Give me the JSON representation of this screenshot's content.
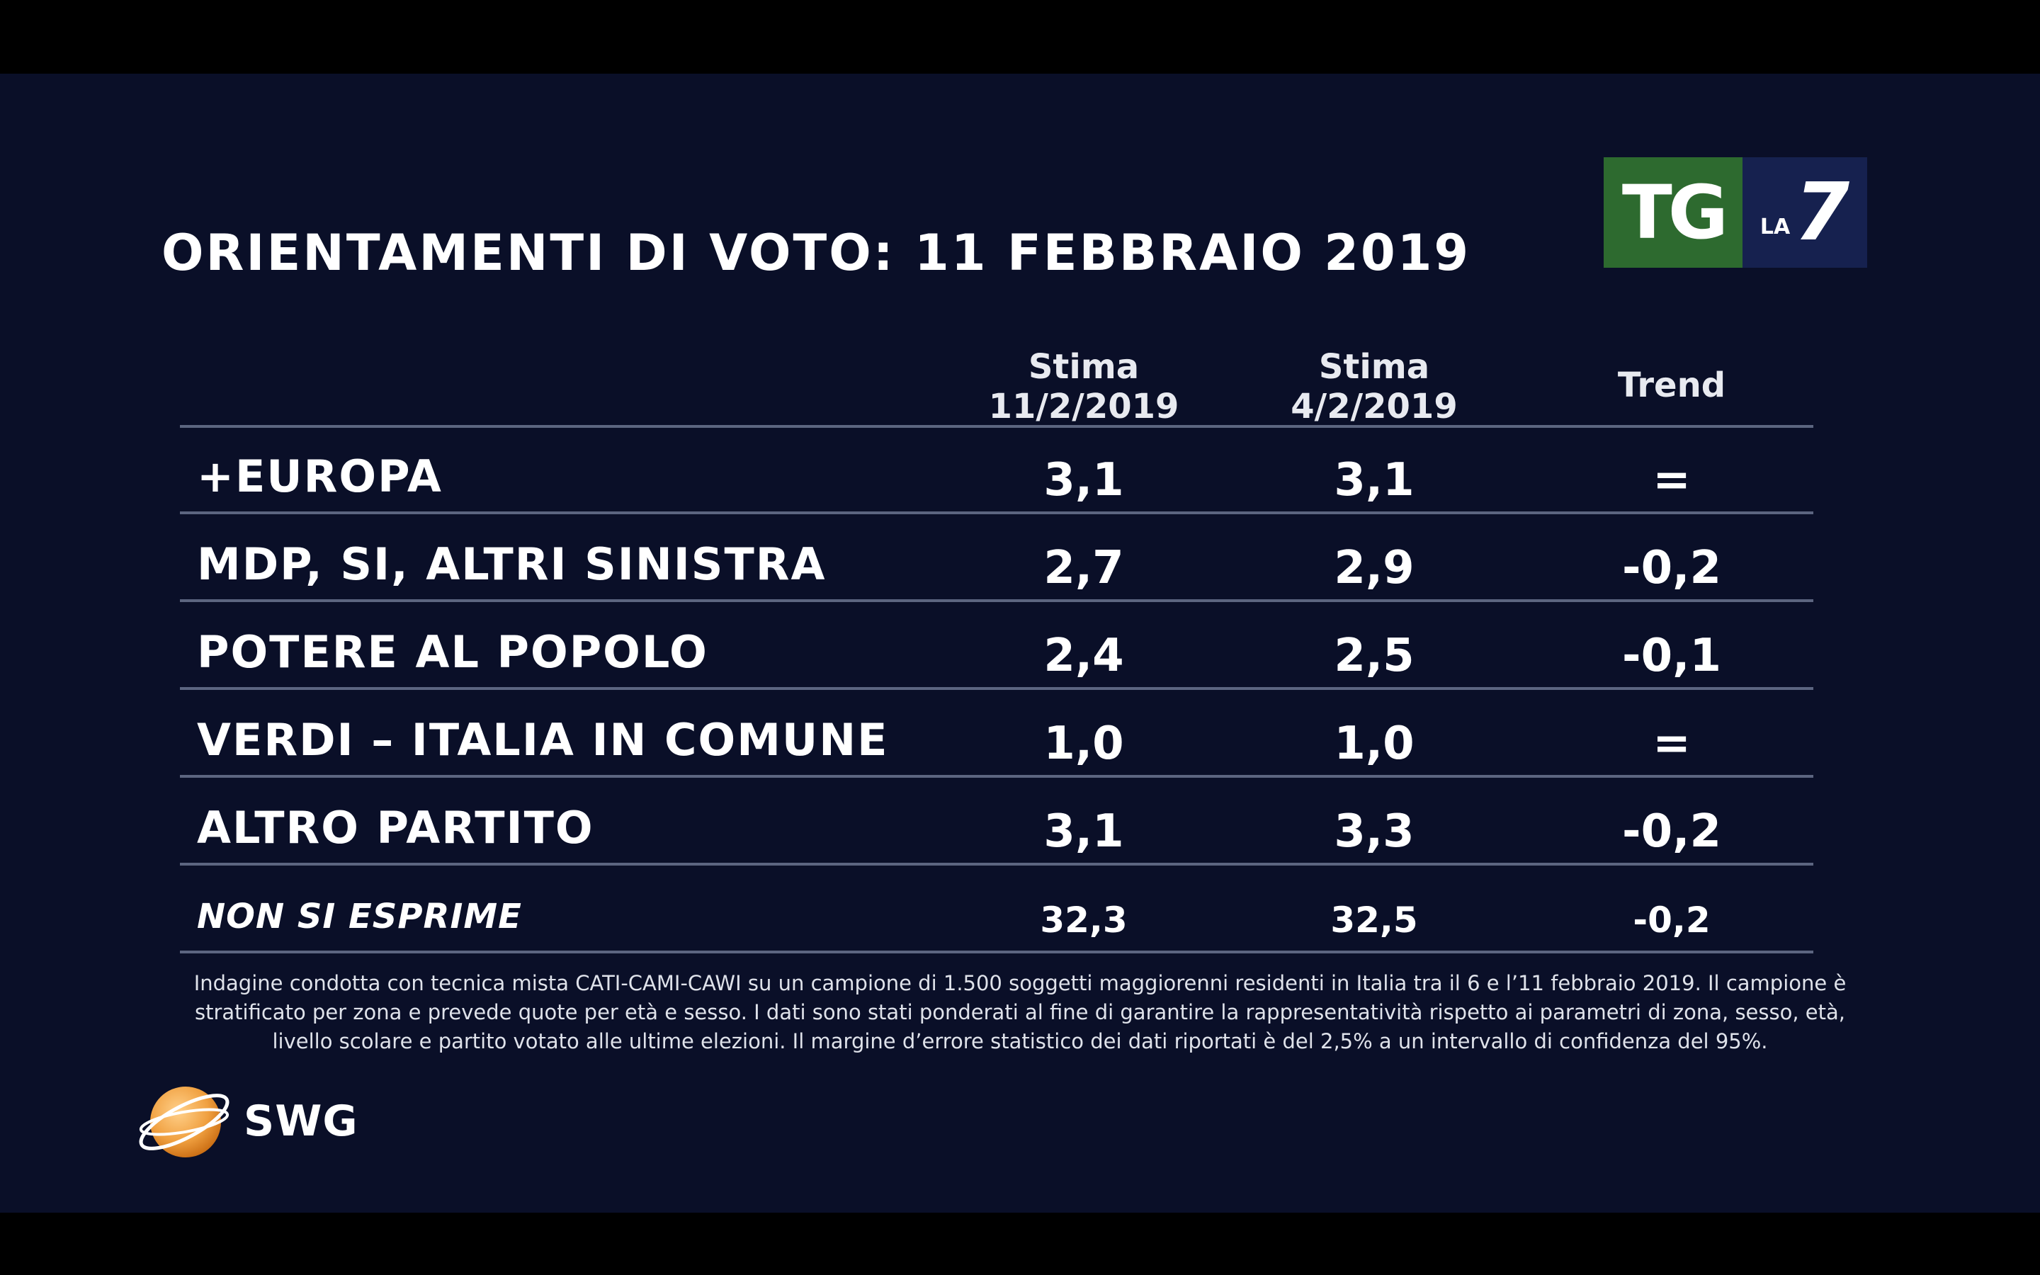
{
  "title": "ORIENTAMENTI DI VOTO: 11 FEBBRAIO 2019",
  "broadcaster_logo": {
    "tg": "TG",
    "la": "LA",
    "seven": "7",
    "tg_color": "#2d6a2f",
    "la7_color": "#16214f"
  },
  "columns": [
    {
      "line1": "Stima",
      "line2": "11/2/2019"
    },
    {
      "line1": "Stima",
      "line2": "4/2/2019"
    },
    {
      "line1": "Trend",
      "line2": ""
    }
  ],
  "chart_data": {
    "type": "table",
    "title": "ORIENTAMENTI DI VOTO: 11 FEBBRAIO 2019",
    "columns": [
      "Stima 11/2/2019",
      "Stima 4/2/2019",
      "Trend"
    ],
    "rows": [
      {
        "party": "+EUROPA",
        "stima_11_2_2019": "3,1",
        "stima_4_2_2019": "3,1",
        "trend": "="
      },
      {
        "party": "MDP, SI, ALTRI SINISTRA",
        "stima_11_2_2019": "2,7",
        "stima_4_2_2019": "2,9",
        "trend": "-0,2"
      },
      {
        "party": "POTERE AL POPOLO",
        "stima_11_2_2019": "2,4",
        "stima_4_2_2019": "2,5",
        "trend": "-0,1"
      },
      {
        "party": "VERDI – ITALIA IN COMUNE",
        "stima_11_2_2019": "1,0",
        "stima_4_2_2019": "1,0",
        "trend": "="
      },
      {
        "party": "ALTRO PARTITO",
        "stima_11_2_2019": "3,1",
        "stima_4_2_2019": "3,3",
        "trend": "-0,2"
      },
      {
        "party": "NON SI ESPRIME",
        "stima_11_2_2019": "32,3",
        "stima_4_2_2019": "32,5",
        "trend": "-0,2"
      }
    ]
  },
  "note": "Indagine condotta con tecnica mista CATI-CAMI-CAWI su un campione di 1.500 soggetti maggiorenni residenti in Italia tra il 6 e l’11 febbraio 2019. Il campione è stratificato per zona e prevede quote per età e sesso. I dati sono stati ponderati al fine di garantire la rappresentatività rispetto ai parametri di zona, sesso, età, livello scolare e partito votato alle ultime elezioni. Il margine d’errore statistico dei dati riportati è del 2,5% a un intervallo di confidenza del 95%.",
  "source_logo": {
    "text": "SWG",
    "globe_color": "#f0a040"
  },
  "background_color": "#0a0f28"
}
